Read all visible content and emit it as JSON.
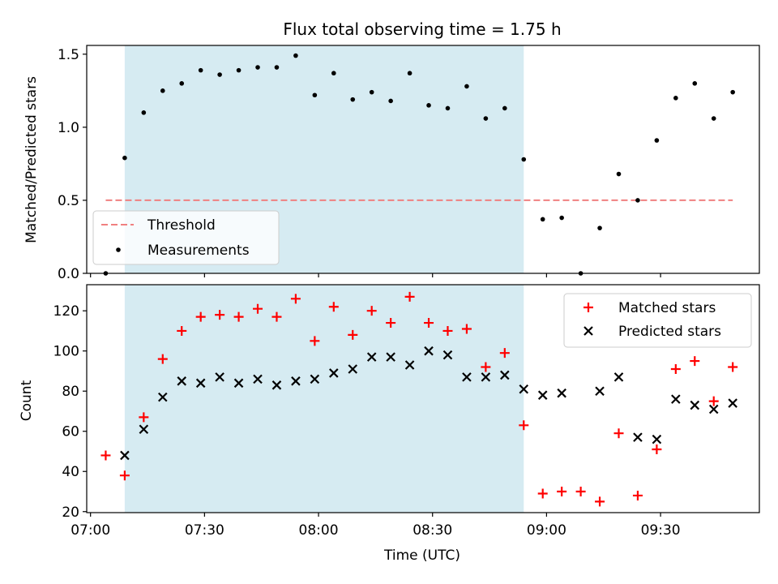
{
  "figure": {
    "title": "Flux total observing time = 1.75 h"
  },
  "chart_data": [
    {
      "type": "scatter",
      "panel": "top",
      "ylabel": "Matched/Predicted stars",
      "ylim": [
        0,
        1.56
      ],
      "xlim": [
        "06:59",
        "09:56"
      ],
      "yticks": [
        "0.0",
        "0.5",
        "1.0",
        "1.5"
      ],
      "ytick_values": [
        0,
        0.5,
        1.0,
        1.5
      ],
      "shaded_interval": [
        "07:09",
        "08:54"
      ],
      "shade_color": "#add8e6",
      "legend_position": "lower-left",
      "threshold": {
        "name": "Threshold",
        "value": 0.5,
        "x_range": [
          "07:04",
          "09:49"
        ],
        "color": "#f08080",
        "style": "dashed"
      },
      "series": [
        {
          "name": "Measurements",
          "color": "#000000",
          "marker": "dot",
          "x": [
            "07:04",
            "07:09",
            "07:14",
            "07:19",
            "07:24",
            "07:29",
            "07:34",
            "07:39",
            "07:44",
            "07:49",
            "07:54",
            "07:59",
            "08:04",
            "08:09",
            "08:14",
            "08:19",
            "08:24",
            "08:29",
            "08:34",
            "08:39",
            "08:44",
            "08:49",
            "08:54",
            "08:59",
            "09:04",
            "09:09",
            "09:14",
            "09:19",
            "09:24",
            "09:29",
            "09:34",
            "09:39",
            "09:44",
            "09:49"
          ],
          "y": [
            0.0,
            0.79,
            1.1,
            1.25,
            1.3,
            1.39,
            1.36,
            1.39,
            1.41,
            1.41,
            1.49,
            1.22,
            1.37,
            1.19,
            1.24,
            1.18,
            1.37,
            1.15,
            1.13,
            1.28,
            1.06,
            1.13,
            0.78,
            0.37,
            0.38,
            0.0,
            0.31,
            0.68,
            0.5,
            0.91,
            1.2,
            1.3,
            1.06,
            1.24
          ]
        }
      ]
    },
    {
      "type": "scatter",
      "panel": "bottom",
      "xlabel": "Time (UTC)",
      "ylabel": "Count",
      "ylim": [
        19.5,
        133
      ],
      "xlim": [
        "06:59",
        "09:56"
      ],
      "xticks": [
        "07:00",
        "07:30",
        "08:00",
        "08:30",
        "09:00",
        "09:30"
      ],
      "yticks": [
        "20",
        "40",
        "60",
        "80",
        "100",
        "120"
      ],
      "ytick_values": [
        20,
        40,
        60,
        80,
        100,
        120
      ],
      "shaded_interval": [
        "07:09",
        "08:54"
      ],
      "shade_color": "#add8e6",
      "legend_position": "upper-right",
      "series": [
        {
          "name": "Matched stars",
          "color": "#ff0000",
          "marker": "plus",
          "x": [
            "07:04",
            "07:09",
            "07:14",
            "07:19",
            "07:24",
            "07:29",
            "07:34",
            "07:39",
            "07:44",
            "07:49",
            "07:54",
            "07:59",
            "08:04",
            "08:09",
            "08:14",
            "08:19",
            "08:24",
            "08:29",
            "08:34",
            "08:39",
            "08:44",
            "08:49",
            "08:54",
            "08:59",
            "09:04",
            "09:09",
            "09:14",
            "09:19",
            "09:24",
            "09:29",
            "09:34",
            "09:39",
            "09:44",
            "09:49"
          ],
          "y": [
            48,
            38,
            67,
            96,
            110,
            117,
            118,
            117,
            121,
            117,
            126,
            105,
            122,
            108,
            120,
            114,
            127,
            114,
            110,
            111,
            92,
            99,
            63,
            29,
            30,
            30,
            25,
            59,
            28,
            51,
            91,
            95,
            75,
            92
          ]
        },
        {
          "name": "Predicted stars",
          "color": "#000000",
          "marker": "x",
          "x": [
            "07:09",
            "07:14",
            "07:19",
            "07:24",
            "07:29",
            "07:34",
            "07:39",
            "07:44",
            "07:49",
            "07:54",
            "07:59",
            "08:04",
            "08:09",
            "08:14",
            "08:19",
            "08:24",
            "08:29",
            "08:34",
            "08:39",
            "08:44",
            "08:49",
            "08:54",
            "08:59",
            "09:04",
            "09:14",
            "09:19",
            "09:24",
            "09:29",
            "09:34",
            "09:39",
            "09:44",
            "09:49"
          ],
          "y": [
            48,
            61,
            77,
            85,
            84,
            87,
            84,
            86,
            83,
            85,
            86,
            89,
            91,
            97,
            97,
            93,
            100,
            98,
            87,
            87,
            88,
            81,
            78,
            79,
            80,
            87,
            57,
            56,
            76,
            73,
            71,
            74
          ]
        }
      ]
    }
  ]
}
